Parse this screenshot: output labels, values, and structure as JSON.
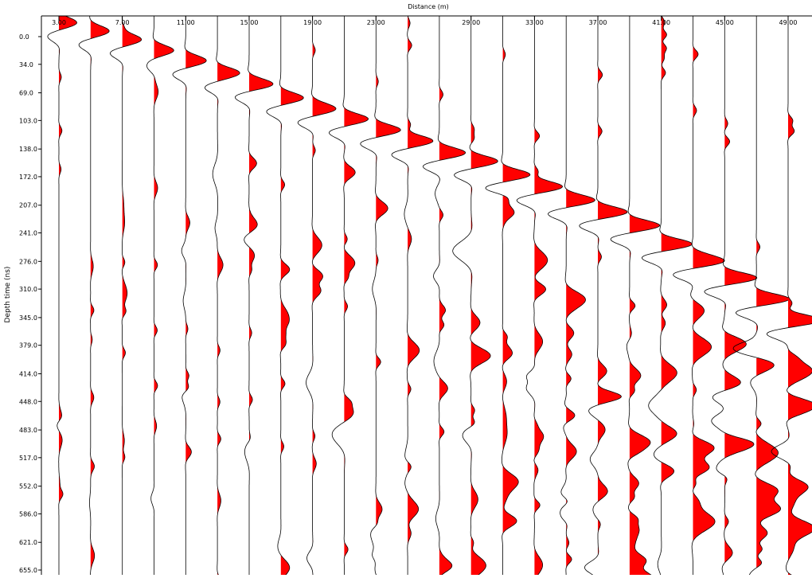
{
  "chart_data": {
    "type": "wiggle",
    "title": "",
    "xlabel": "Distance (m)",
    "ylabel": "Depth time (ns)",
    "x_tick_labels": [
      "3.00",
      "7.00",
      "11.00",
      "15.00",
      "19.00",
      "23.00",
      "29.00",
      "33.00",
      "37.00",
      "41.00",
      "45.00",
      "49.00"
    ],
    "x_tick_values": [
      3,
      7,
      11,
      15,
      19,
      23,
      29,
      33,
      37,
      41,
      45,
      49
    ],
    "y_tick_labels": [
      "0.0",
      "34.0",
      "69.0",
      "103.0",
      "138.0",
      "172.0",
      "207.0",
      "241.0",
      "276.0",
      "310.0",
      "345.0",
      "379.0",
      "414.0",
      "448.0",
      "483.0",
      "517.0",
      "552.0",
      "586.0",
      "621.0",
      "655.0"
    ],
    "y_tick_values": [
      0,
      34,
      69,
      103,
      138,
      172,
      207,
      241,
      276,
      310,
      345,
      379,
      414,
      448,
      483,
      517,
      552,
      586,
      621,
      655
    ],
    "xlim": [
      1.0,
      51.0
    ],
    "ylim": [
      0,
      670
    ],
    "trace_spacing_m": 2,
    "trace_start_m": 3,
    "trace_count": 24,
    "fill_color": "#ff0000",
    "line_color": "#000000",
    "grid": false,
    "first_arrival_ns": [
      8,
      18,
      28,
      41,
      53,
      68,
      80,
      97,
      110,
      122,
      135,
      148,
      162,
      172,
      188,
      202,
      218,
      232,
      248,
      270,
      290,
      310,
      335,
      360
    ]
  }
}
